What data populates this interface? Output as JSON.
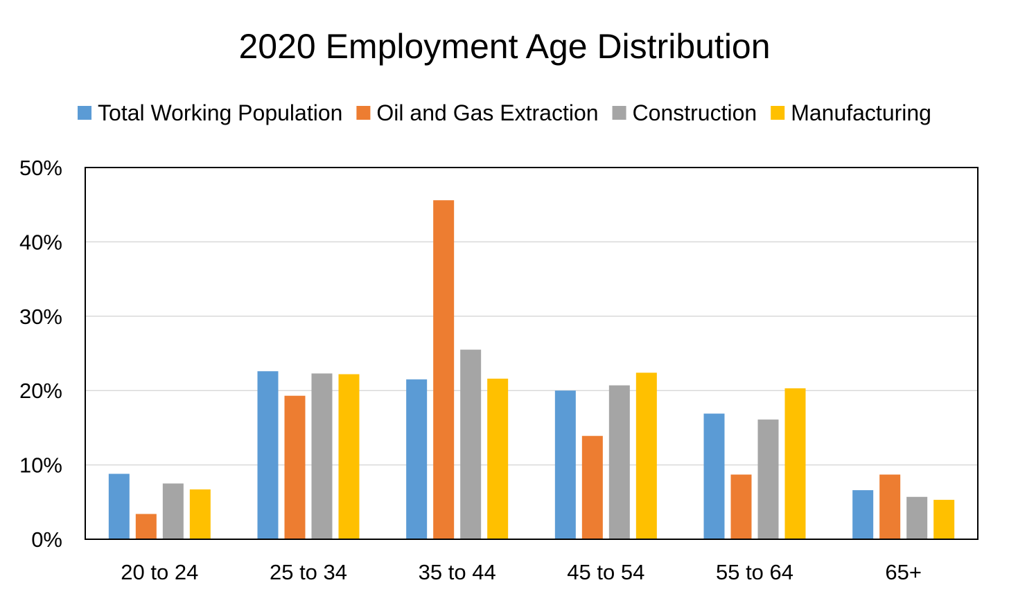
{
  "chart_data": {
    "type": "bar",
    "title": "2020 Employment Age Distribution",
    "xlabel": "",
    "ylabel": "",
    "categories": [
      "20 to 24",
      "25 to 34",
      "35 to 44",
      "45 to 54",
      "55 to 64",
      "65+"
    ],
    "series": [
      {
        "name": "Total Working Population",
        "color": "#5b9bd5",
        "values": [
          8.8,
          22.6,
          21.5,
          20.0,
          16.9,
          6.6
        ]
      },
      {
        "name": "Oil and Gas Extraction",
        "color": "#ed7d31",
        "values": [
          3.4,
          19.3,
          45.6,
          13.9,
          8.7,
          8.7
        ]
      },
      {
        "name": "Construction",
        "color": "#a5a5a5",
        "values": [
          7.5,
          22.3,
          25.5,
          20.7,
          16.1,
          5.7
        ]
      },
      {
        "name": "Manufacturing",
        "color": "#ffc000",
        "values": [
          6.7,
          22.2,
          21.6,
          22.4,
          20.3,
          5.3
        ]
      }
    ],
    "ylim": [
      0,
      50
    ],
    "yticks": [
      0,
      10,
      20,
      30,
      40,
      50
    ],
    "ytick_labels": [
      "0%",
      "10%",
      "20%",
      "30%",
      "40%",
      "50%"
    ],
    "grid": true,
    "legend_position": "top"
  }
}
